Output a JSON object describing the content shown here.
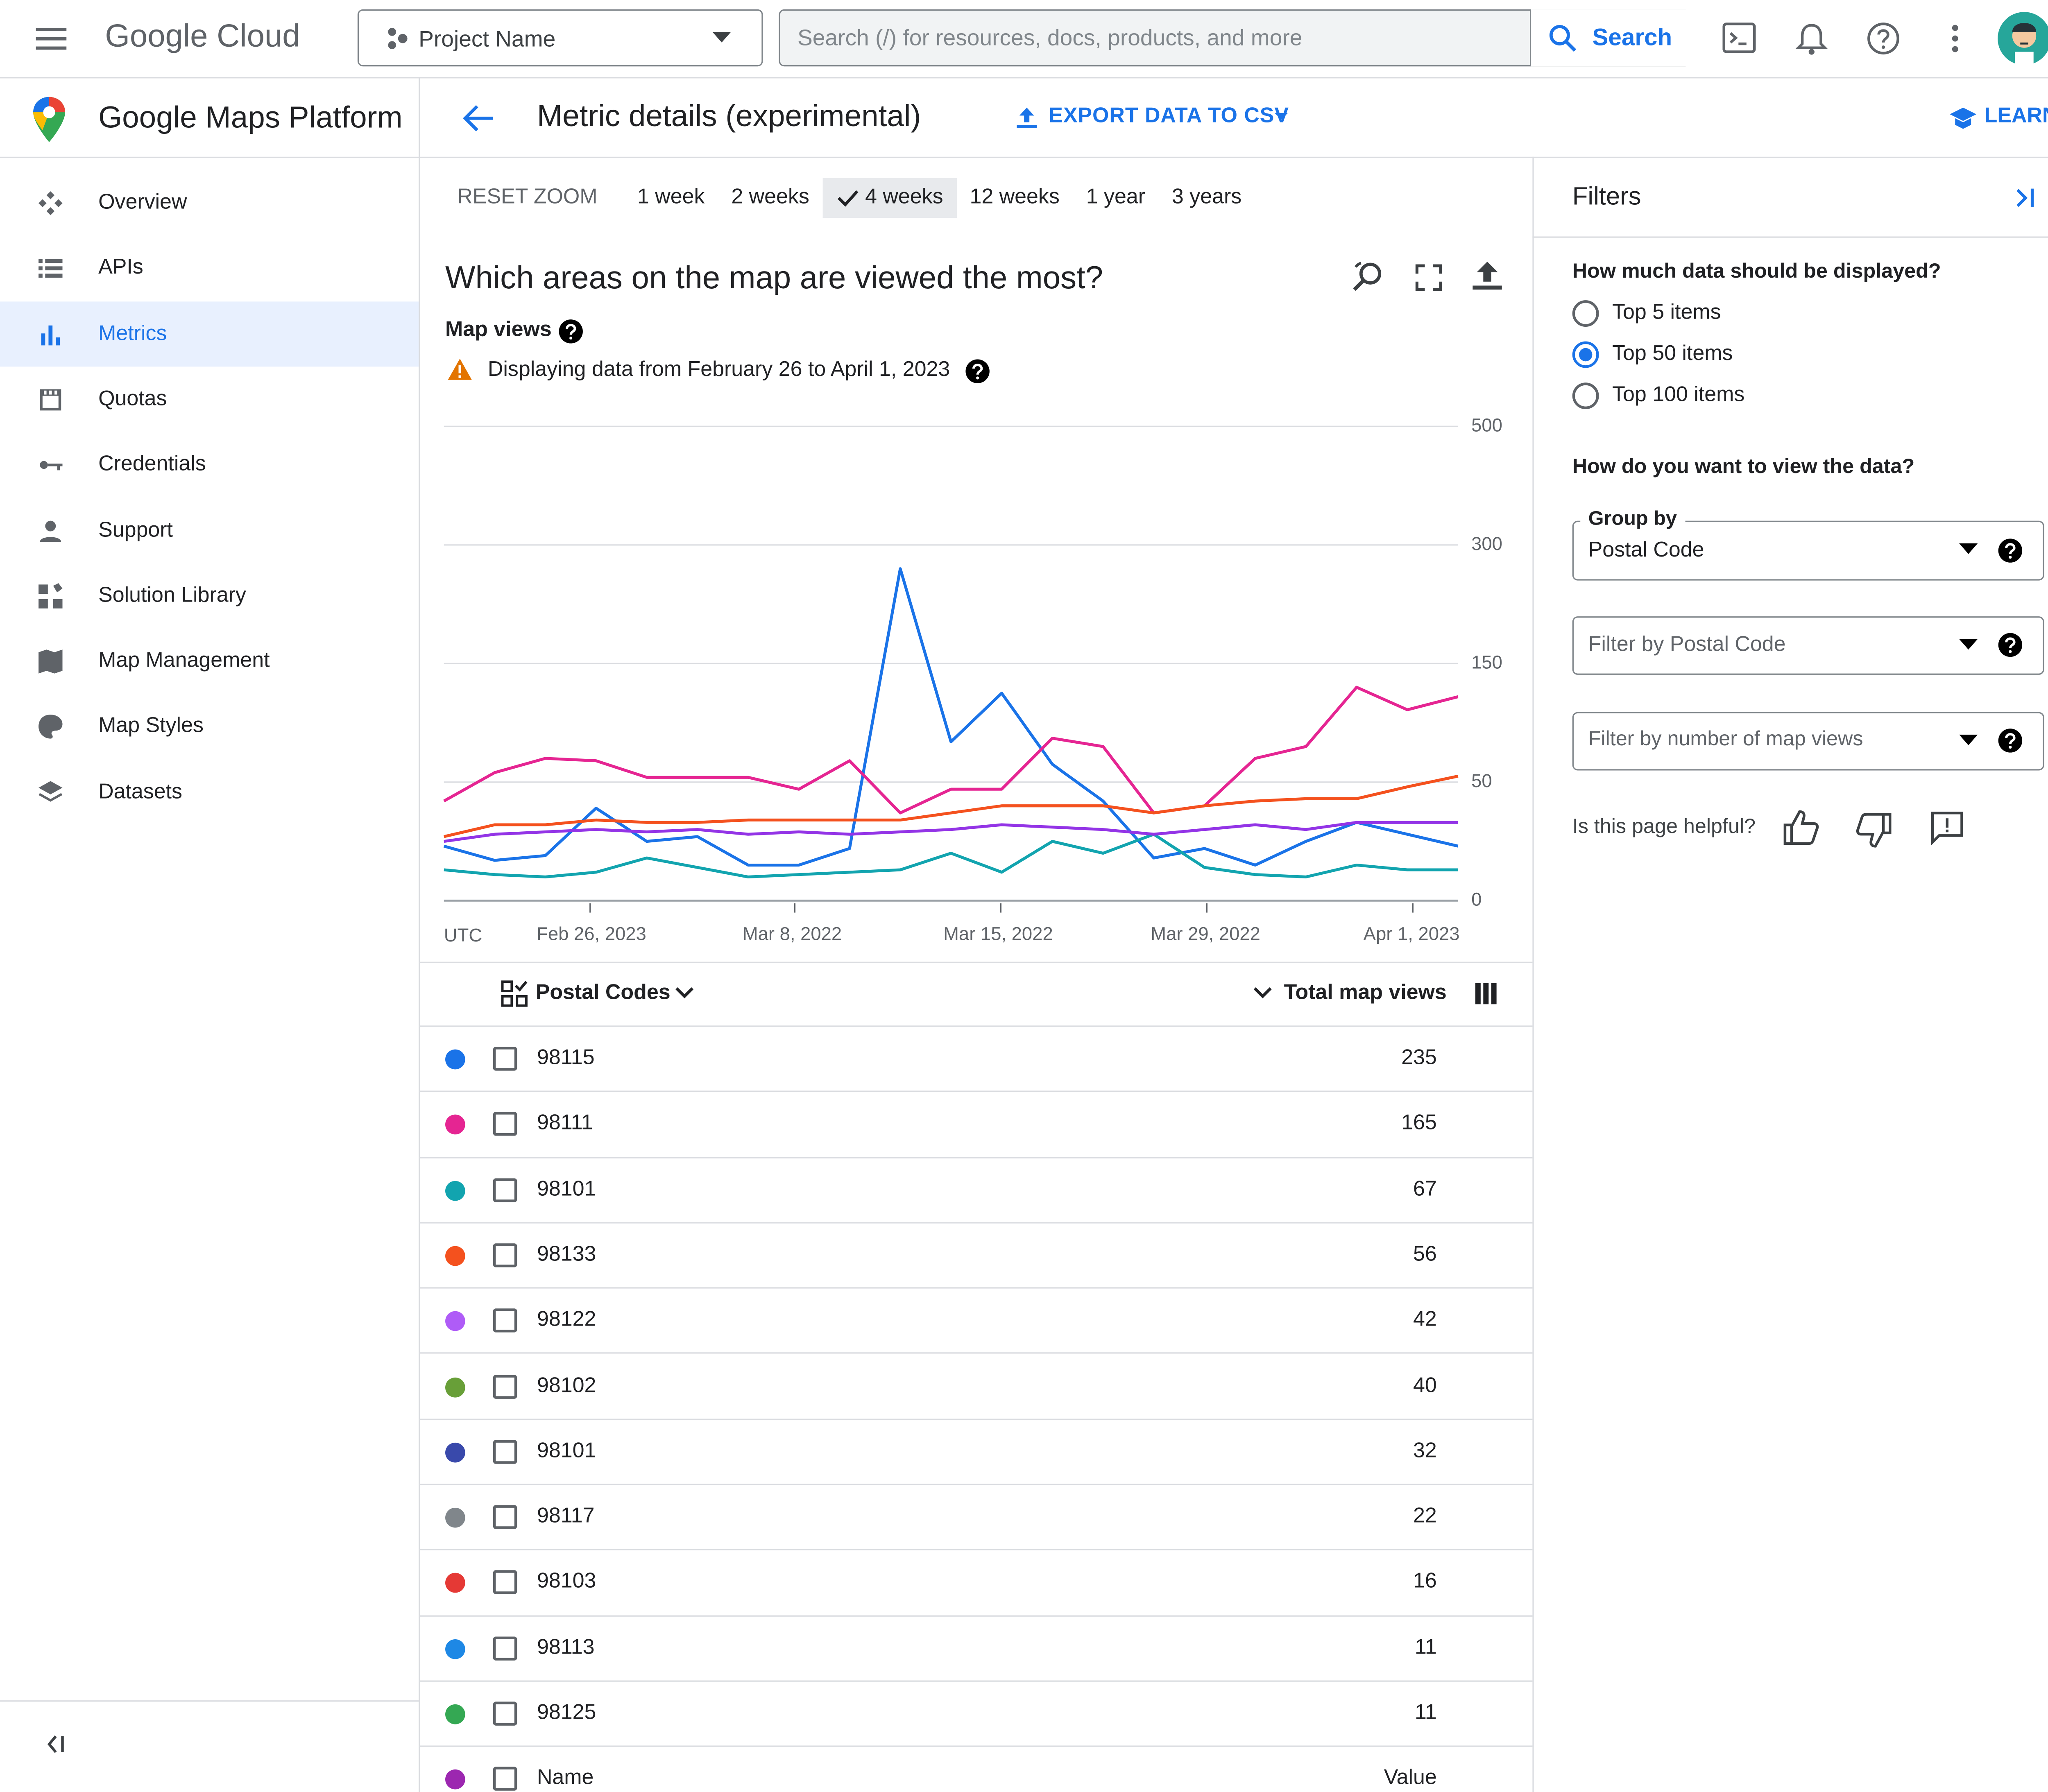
{
  "top_bar": {
    "brand": "Google Cloud",
    "project": "Project Name",
    "search_placeholder": "Search (/) for resources, docs, products, and more",
    "search_button": "Search"
  },
  "sidebar": {
    "title": "Google Maps Platform",
    "items": [
      "Overview",
      "APIs",
      "Metrics",
      "Quotas",
      "Credentials",
      "Support",
      "Solution Library",
      "Map Management",
      "Map Styles",
      "Datasets"
    ],
    "active": 2
  },
  "header": {
    "title": "Metric details (experimental)",
    "export": "EXPORT DATA TO CSV",
    "learn": "LEARN"
  },
  "range": {
    "reset": "RESET ZOOM",
    "options": [
      "1 week",
      "2 weeks",
      "4 weeks",
      "12 weeks",
      "1 year",
      "3 years"
    ],
    "selected": 2
  },
  "chart_data": {
    "type": "line",
    "title": "Which areas on the map are viewed the most?",
    "subtitle": "Map views",
    "note": "Displaying data from February 26 to April 1, 2023",
    "x_axis_label": "UTC",
    "x_labels": [
      "Feb 26, 2023",
      "Mar 8, 2022",
      "Mar 15, 2022",
      "Mar 29, 2022",
      "Apr 1, 2023"
    ],
    "ylim": [
      0,
      500
    ],
    "yticks": [
      0,
      50,
      150,
      300,
      500
    ],
    "yscale": "tick-spaced",
    "grid": true,
    "series": [
      {
        "color": "#1a73e8",
        "values": [
          23,
          17,
          19,
          39,
          25,
          27,
          15,
          15,
          22,
          270,
          84,
          125,
          65,
          42,
          18,
          22,
          15,
          25,
          33,
          28,
          23
        ]
      },
      {
        "color": "#e52592",
        "values": [
          42,
          58,
          70,
          68,
          54,
          54,
          54,
          47,
          68,
          37,
          47,
          47,
          87,
          80,
          37,
          40,
          70,
          80,
          130,
          111,
          122
        ]
      },
      {
        "color": "#12a4af",
        "values": [
          13,
          11,
          10,
          12,
          18,
          14,
          10,
          11,
          12,
          13,
          20,
          12,
          25,
          20,
          28,
          14,
          11,
          10,
          15,
          13,
          13
        ]
      },
      {
        "color": "#f4511e",
        "values": [
          27,
          32,
          32,
          34,
          33,
          33,
          34,
          34,
          34,
          34,
          37,
          40,
          40,
          40,
          37,
          40,
          42,
          43,
          43,
          48,
          55
        ]
      },
      {
        "color": "#9334e6",
        "values": [
          25,
          28,
          29,
          30,
          29,
          30,
          28,
          29,
          28,
          29,
          30,
          32,
          31,
          30,
          28,
          30,
          32,
          30,
          33,
          33,
          33
        ]
      }
    ]
  },
  "table": {
    "header": [
      "Postal Codes",
      "Total map views"
    ],
    "rows": [
      {
        "color": "#1a73e8",
        "code": "98115",
        "value": 235
      },
      {
        "color": "#e52592",
        "code": "98111",
        "value": 165
      },
      {
        "color": "#12a4af",
        "code": "98101",
        "value": 67
      },
      {
        "color": "#f4511e",
        "code": "98133",
        "value": 56
      },
      {
        "color": "#af5cf7",
        "code": "98122",
        "value": 42
      },
      {
        "color": "#689f38",
        "code": "98102",
        "value": 40
      },
      {
        "color": "#3949ab",
        "code": "98101",
        "value": 32
      },
      {
        "color": "#80868b",
        "code": "98117",
        "value": 22
      },
      {
        "color": "#e53935",
        "code": "98103",
        "value": 16
      },
      {
        "color": "#1e88e5",
        "code": "98113",
        "value": 11
      },
      {
        "color": "#34a853",
        "code": "98125",
        "value": 11
      },
      {
        "color": "#9c27b0",
        "code": "Name",
        "value": "Value"
      }
    ]
  },
  "filters": {
    "title": "Filters",
    "question1": "How much data should be displayed?",
    "options": [
      "Top 5 items",
      "Top 50 items",
      "Top 100 items"
    ],
    "selected": 1,
    "question2": "How do you want to view the data?",
    "group_label": "Group by",
    "group_value": "Postal Code",
    "filter1": "Filter by Postal Code",
    "filter2": "Filter by number of map views",
    "helpful": "Is this page helpful?"
  }
}
